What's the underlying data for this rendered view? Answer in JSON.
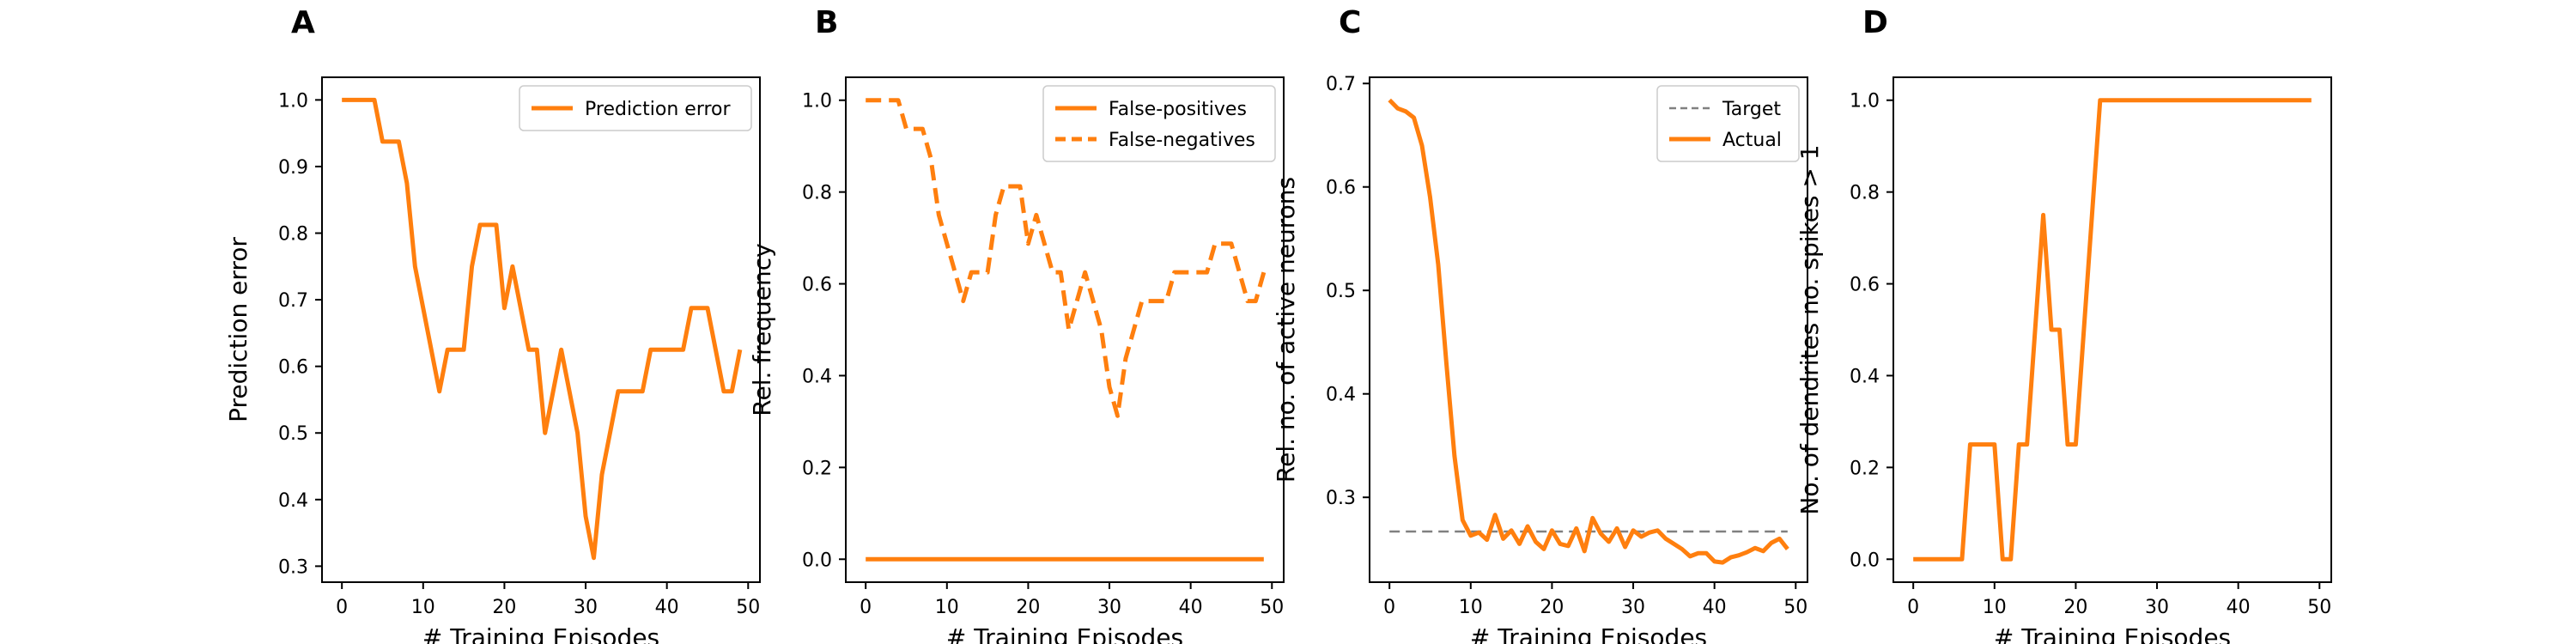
{
  "colors": {
    "series": "#ff7f0e",
    "target": "#808080",
    "axis": "#000000"
  },
  "chart_data": [
    {
      "panel_label": "A",
      "type": "line",
      "xlabel": "# Training Episodes",
      "ylabel": "Prediction error",
      "xlim": [
        -2.45,
        51.45
      ],
      "ylim": [
        0.276,
        1.034
      ],
      "xticks": [
        0,
        10,
        20,
        30,
        40,
        50
      ],
      "yticks": [
        0.3,
        0.4,
        0.5,
        0.6,
        0.7,
        0.8,
        0.9,
        1.0
      ],
      "ytick_decimals": 1,
      "grid": false,
      "legend": "upper right",
      "series": [
        {
          "name": "Prediction error",
          "style": "solid",
          "x": [
            0,
            1,
            2,
            3,
            4,
            5,
            6,
            7,
            8,
            9,
            10,
            11,
            12,
            13,
            14,
            15,
            16,
            17,
            18,
            19,
            20,
            21,
            22,
            23,
            24,
            25,
            26,
            27,
            28,
            29,
            30,
            31,
            32,
            33,
            34,
            35,
            36,
            37,
            38,
            39,
            40,
            41,
            42,
            43,
            44,
            45,
            46,
            47,
            48,
            49
          ],
          "y": [
            1.0,
            1.0,
            1.0,
            1.0,
            1.0,
            0.9375,
            0.9375,
            0.9375,
            0.875,
            0.75,
            0.6875,
            0.625,
            0.5625,
            0.625,
            0.625,
            0.625,
            0.75,
            0.8125,
            0.8125,
            0.8125,
            0.6875,
            0.75,
            0.6875,
            0.625,
            0.625,
            0.5,
            0.5625,
            0.625,
            0.5625,
            0.5,
            0.375,
            0.3125,
            0.4375,
            0.5,
            0.5625,
            0.5625,
            0.5625,
            0.5625,
            0.625,
            0.625,
            0.625,
            0.625,
            0.625,
            0.6875,
            0.6875,
            0.6875,
            0.625,
            0.5625,
            0.5625,
            0.625
          ]
        }
      ]
    },
    {
      "panel_label": "B",
      "type": "line",
      "xlabel": "# Training Episodes",
      "ylabel": "Rel. frequency",
      "xlim": [
        -2.45,
        51.45
      ],
      "ylim": [
        -0.05,
        1.05
      ],
      "xticks": [
        0,
        10,
        20,
        30,
        40,
        50
      ],
      "yticks": [
        0.0,
        0.2,
        0.4,
        0.6,
        0.8,
        1.0
      ],
      "ytick_decimals": 1,
      "grid": false,
      "legend": "upper right",
      "series": [
        {
          "name": "False-positives",
          "style": "solid",
          "x": [
            0,
            49
          ],
          "y": [
            0.0,
            0.0
          ]
        },
        {
          "name": "False-negatives",
          "style": "dashed",
          "x": [
            0,
            1,
            2,
            3,
            4,
            5,
            6,
            7,
            8,
            9,
            10,
            11,
            12,
            13,
            14,
            15,
            16,
            17,
            18,
            19,
            20,
            21,
            22,
            23,
            24,
            25,
            26,
            27,
            28,
            29,
            30,
            31,
            32,
            33,
            34,
            35,
            36,
            37,
            38,
            39,
            40,
            41,
            42,
            43,
            44,
            45,
            46,
            47,
            48,
            49
          ],
          "y": [
            1.0,
            1.0,
            1.0,
            1.0,
            1.0,
            0.9375,
            0.9375,
            0.9375,
            0.875,
            0.75,
            0.6875,
            0.625,
            0.5625,
            0.625,
            0.625,
            0.625,
            0.75,
            0.8125,
            0.8125,
            0.8125,
            0.6875,
            0.75,
            0.6875,
            0.625,
            0.625,
            0.5,
            0.5625,
            0.625,
            0.5625,
            0.5,
            0.375,
            0.3125,
            0.4375,
            0.5,
            0.5625,
            0.5625,
            0.5625,
            0.5625,
            0.625,
            0.625,
            0.625,
            0.625,
            0.625,
            0.6875,
            0.6875,
            0.6875,
            0.625,
            0.5625,
            0.5625,
            0.625
          ]
        }
      ]
    },
    {
      "panel_label": "C",
      "type": "line",
      "xlabel": "# Training Episodes",
      "ylabel": "Rel. no. of active neurons",
      "xlim": [
        -2.45,
        51.45
      ],
      "ylim": [
        0.218,
        0.706
      ],
      "xticks": [
        0,
        10,
        20,
        30,
        40,
        50
      ],
      "yticks": [
        0.3,
        0.4,
        0.5,
        0.6,
        0.7
      ],
      "ytick_decimals": 1,
      "grid": false,
      "legend": "upper right",
      "series": [
        {
          "name": "Target",
          "style": "dashed-thin",
          "x": [
            0,
            49
          ],
          "y": [
            0.267,
            0.267
          ]
        },
        {
          "name": "Actual",
          "style": "solid",
          "x": [
            0,
            1,
            2,
            3,
            4,
            5,
            6,
            7,
            8,
            9,
            10,
            11,
            12,
            13,
            14,
            15,
            16,
            17,
            18,
            19,
            20,
            21,
            22,
            23,
            24,
            25,
            26,
            27,
            28,
            29,
            30,
            31,
            32,
            33,
            34,
            35,
            36,
            37,
            38,
            39,
            40,
            41,
            42,
            43,
            44,
            45,
            46,
            47,
            48,
            49
          ],
          "y": [
            0.684,
            0.676,
            0.673,
            0.667,
            0.64,
            0.59,
            0.525,
            0.43,
            0.34,
            0.278,
            0.263,
            0.266,
            0.259,
            0.283,
            0.26,
            0.268,
            0.255,
            0.272,
            0.257,
            0.25,
            0.268,
            0.255,
            0.253,
            0.27,
            0.248,
            0.28,
            0.265,
            0.257,
            0.27,
            0.252,
            0.268,
            0.262,
            0.266,
            0.268,
            0.26,
            0.255,
            0.25,
            0.243,
            0.246,
            0.246,
            0.238,
            0.237,
            0.242,
            0.244,
            0.247,
            0.251,
            0.248,
            0.256,
            0.26,
            0.25
          ]
        }
      ]
    },
    {
      "panel_label": "D",
      "type": "line",
      "xlabel": "# Training Episodes",
      "ylabel": "No. of dendrites no. spikes > 1",
      "xlim": [
        -2.45,
        51.45
      ],
      "ylim": [
        -0.05,
        1.05
      ],
      "xticks": [
        0,
        10,
        20,
        30,
        40,
        50
      ],
      "yticks": [
        0.0,
        0.2,
        0.4,
        0.6,
        0.8,
        1.0
      ],
      "ytick_decimals": 1,
      "grid": false,
      "legend": "none",
      "series": [
        {
          "name": "",
          "style": "solid",
          "x": [
            0,
            1,
            2,
            3,
            4,
            5,
            6,
            7,
            8,
            9,
            10,
            11,
            12,
            13,
            14,
            15,
            16,
            17,
            18,
            19,
            20,
            21,
            22,
            23,
            24,
            25,
            26,
            27,
            28,
            29,
            30,
            31,
            32,
            33,
            34,
            35,
            36,
            37,
            38,
            39,
            40,
            41,
            42,
            43,
            44,
            45,
            46,
            47,
            48,
            49
          ],
          "y": [
            0,
            0,
            0,
            0,
            0,
            0,
            0,
            0.25,
            0.25,
            0.25,
            0.25,
            0,
            0,
            0.25,
            0.25,
            0.5,
            0.75,
            0.5,
            0.5,
            0.25,
            0.25,
            0.5,
            0.75,
            1,
            1,
            1,
            1,
            1,
            1,
            1,
            1,
            1,
            1,
            1,
            1,
            1,
            1,
            1,
            1,
            1,
            1,
            1,
            1,
            1,
            1,
            1,
            1,
            1,
            1,
            1
          ]
        }
      ]
    }
  ]
}
